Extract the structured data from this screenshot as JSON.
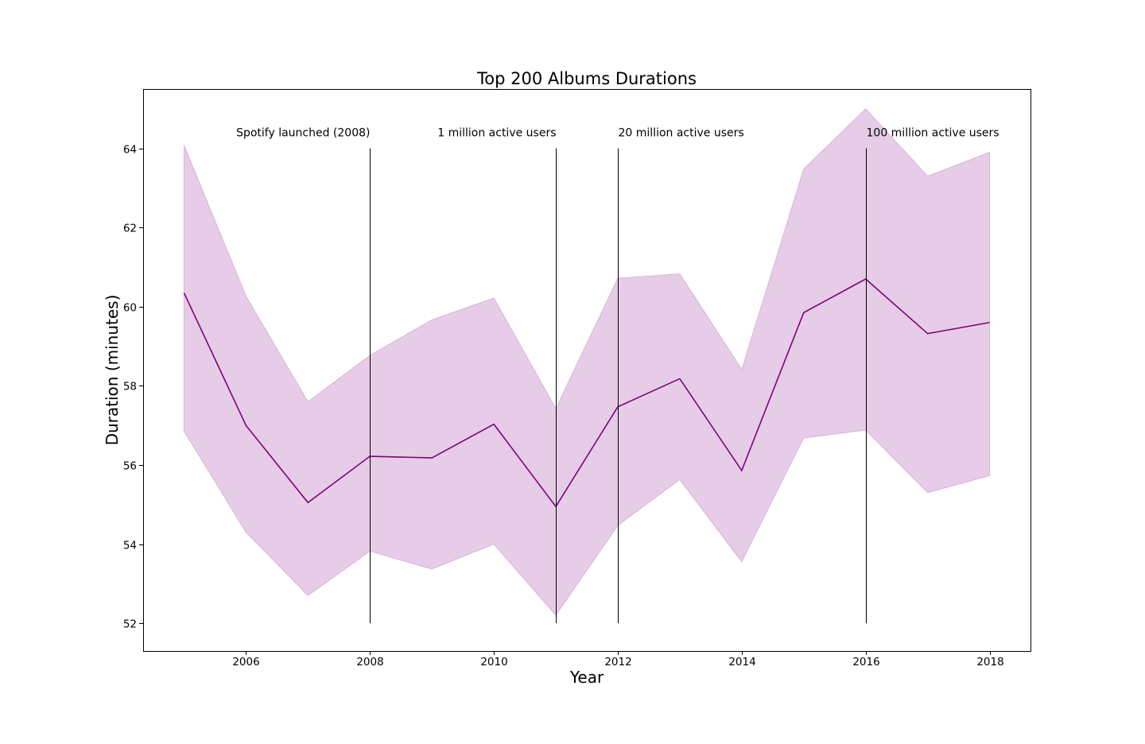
{
  "chart_data": {
    "type": "line",
    "title": "Top 200 Albums Durations",
    "xlabel": "Year",
    "ylabel": "Duration (minutes)",
    "xlim": [
      2004.34,
      2018.66
    ],
    "ylim": [
      51.3,
      65.5
    ],
    "grid": false,
    "x_ticks": [
      2006,
      2008,
      2010,
      2012,
      2014,
      2016,
      2018
    ],
    "y_ticks": [
      52,
      54,
      56,
      58,
      60,
      62,
      64
    ],
    "x": [
      2005,
      2006,
      2007,
      2008,
      2009,
      2010,
      2011,
      2012,
      2013,
      2014,
      2015,
      2016,
      2017,
      2018
    ],
    "series": [
      {
        "values": [
          60.35,
          57.0,
          55.05,
          56.22,
          56.18,
          57.03,
          54.95,
          57.47,
          58.18,
          55.86,
          59.85,
          60.7,
          59.32,
          59.6
        ],
        "lower": [
          56.85,
          54.3,
          52.7,
          53.82,
          53.37,
          54.0,
          52.2,
          54.47,
          55.63,
          53.55,
          56.68,
          56.88,
          55.3,
          55.73
        ],
        "upper": [
          64.08,
          60.27,
          57.6,
          58.77,
          59.67,
          60.22,
          57.43,
          60.72,
          60.83,
          58.42,
          63.48,
          65.0,
          63.3,
          63.9
        ],
        "color": "#800080"
      }
    ],
    "annotations": [
      {
        "x": 2008,
        "ymin": 52,
        "ymax": 64,
        "label": "Spotify launched (2008)",
        "align": "end"
      },
      {
        "x": 2011,
        "ymin": 52,
        "ymax": 64,
        "label": "1 million active users",
        "align": "end"
      },
      {
        "x": 2012,
        "ymin": 52,
        "ymax": 64,
        "label": "20 million active users",
        "align": "start"
      },
      {
        "x": 2016,
        "ymin": 52,
        "ymax": 64,
        "label": "100 million active users",
        "align": "start"
      }
    ],
    "line_color": "#800080",
    "band_color": "#800080",
    "annotation_line_color": "#000000"
  }
}
